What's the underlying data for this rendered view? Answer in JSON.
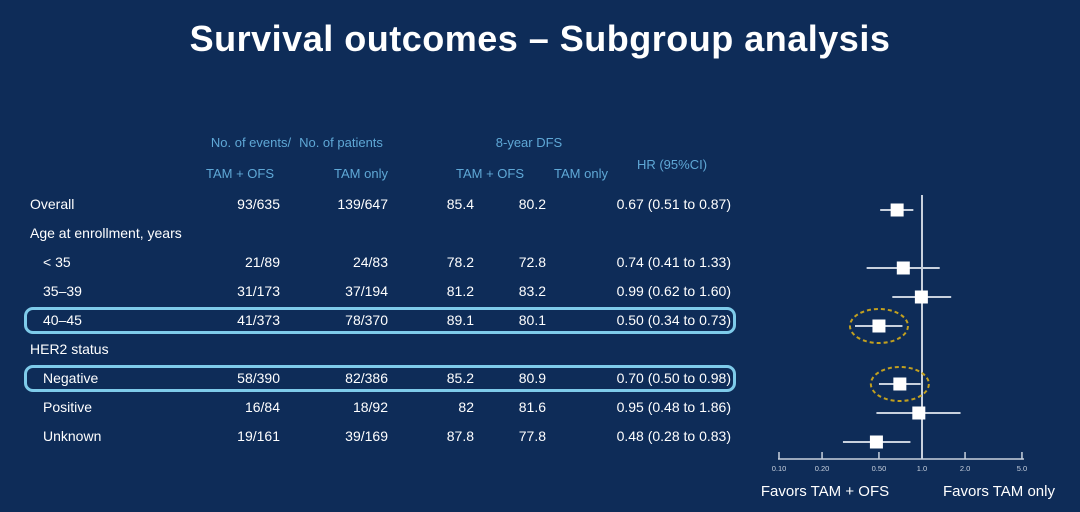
{
  "slide": {
    "title": "Survival outcomes – Subgroup analysis"
  },
  "table": {
    "header": {
      "events_label": "No. of events/",
      "patients_label": "No. of patients",
      "dfs_label": "8-year DFS",
      "hr_label": "HR (95%CI)",
      "sub": {
        "tam_ofs": "TAM + OFS",
        "tam_only": "TAM only"
      }
    },
    "rows": [
      {
        "type": "data",
        "label": "Overall",
        "indent": false,
        "highlighted": false,
        "circled": false,
        "events_tam_ofs": "93/635",
        "events_tam_only": "139/647",
        "dfs_tam_ofs": "85.4",
        "dfs_tam_only": "80.2",
        "hr_text": "0.67 (0.51 to 0.87)",
        "hr": 0.67,
        "ci_low": 0.51,
        "ci_high": 0.87
      },
      {
        "type": "section",
        "label": "Age at enrollment, years"
      },
      {
        "type": "data",
        "label": "< 35",
        "indent": true,
        "highlighted": false,
        "circled": false,
        "events_tam_ofs": "21/89",
        "events_tam_only": "24/83",
        "dfs_tam_ofs": "78.2",
        "dfs_tam_only": "72.8",
        "hr_text": "0.74 (0.41 to 1.33)",
        "hr": 0.74,
        "ci_low": 0.41,
        "ci_high": 1.33
      },
      {
        "type": "data",
        "label": "35–39",
        "indent": true,
        "highlighted": false,
        "circled": false,
        "events_tam_ofs": "31/173",
        "events_tam_only": "37/194",
        "dfs_tam_ofs": "81.2",
        "dfs_tam_only": "83.2",
        "hr_text": "0.99 (0.62 to 1.60)",
        "hr": 0.99,
        "ci_low": 0.62,
        "ci_high": 1.6
      },
      {
        "type": "data",
        "label": "40–45",
        "indent": true,
        "highlighted": true,
        "circled": true,
        "events_tam_ofs": "41/373",
        "events_tam_only": "78/370",
        "dfs_tam_ofs": "89.1",
        "dfs_tam_only": "80.1",
        "hr_text": "0.50 (0.34 to 0.73)",
        "hr": 0.5,
        "ci_low": 0.34,
        "ci_high": 0.73
      },
      {
        "type": "section",
        "label": "HER2 status"
      },
      {
        "type": "data",
        "label": "Negative",
        "indent": true,
        "highlighted": true,
        "circled": true,
        "events_tam_ofs": "58/390",
        "events_tam_only": "82/386",
        "dfs_tam_ofs": "85.2",
        "dfs_tam_only": "80.9",
        "hr_text": "0.70 (0.50 to 0.98)",
        "hr": 0.7,
        "ci_low": 0.5,
        "ci_high": 0.98
      },
      {
        "type": "data",
        "label": "Positive",
        "indent": true,
        "highlighted": false,
        "circled": false,
        "events_tam_ofs": "16/84",
        "events_tam_only": "18/92",
        "dfs_tam_ofs": "82",
        "dfs_tam_only": "81.6",
        "hr_text": "0.95 (0.48 to 1.86)",
        "hr": 0.95,
        "ci_low": 0.48,
        "ci_high": 1.86
      },
      {
        "type": "data",
        "label": "Unknown",
        "indent": true,
        "highlighted": false,
        "circled": false,
        "events_tam_ofs": "19/161",
        "events_tam_only": "39/169",
        "dfs_tam_ofs": "87.8",
        "dfs_tam_only": "77.8",
        "hr_text": "0.48 (0.28 to 0.83)",
        "hr": 0.48,
        "ci_low": 0.28,
        "ci_high": 0.83
      }
    ]
  },
  "chart_data": {
    "type": "forest",
    "x_axis": {
      "scale": "log",
      "ticks": [
        0.1,
        0.2,
        0.5,
        1.0,
        2.0,
        5.0
      ],
      "tick_labels": [
        "0.10",
        "0.20",
        "0.50",
        "1.0",
        "2.0",
        "5.0"
      ],
      "range": [
        0.1,
        5.0
      ],
      "reference_line": 1.0
    },
    "favors_left": "Favors TAM + OFS",
    "favors_right": "Favors TAM only",
    "points": [
      {
        "label": "Overall",
        "hr": 0.67,
        "ci_low": 0.51,
        "ci_high": 0.87,
        "circled": false
      },
      {
        "label": "< 35",
        "hr": 0.74,
        "ci_low": 0.41,
        "ci_high": 1.33,
        "circled": false
      },
      {
        "label": "35–39",
        "hr": 0.99,
        "ci_low": 0.62,
        "ci_high": 1.6,
        "circled": false
      },
      {
        "label": "40–45",
        "hr": 0.5,
        "ci_low": 0.34,
        "ci_high": 0.73,
        "circled": true
      },
      {
        "label": "Negative",
        "hr": 0.7,
        "ci_low": 0.5,
        "ci_high": 0.98,
        "circled": true
      },
      {
        "label": "Positive",
        "hr": 0.95,
        "ci_low": 0.48,
        "ci_high": 1.86,
        "circled": false
      },
      {
        "label": "Unknown",
        "hr": 0.48,
        "ci_low": 0.28,
        "ci_high": 0.83,
        "circled": false
      }
    ]
  },
  "colors": {
    "background": "#0e2c58",
    "header_text": "#5fa8d6",
    "body_text": "#ffffff",
    "highlight_border": "#7ecbea",
    "circle_accent": "#c2a01f",
    "plot_line": "#c8d1de",
    "marker_fill": "#ffffff"
  }
}
